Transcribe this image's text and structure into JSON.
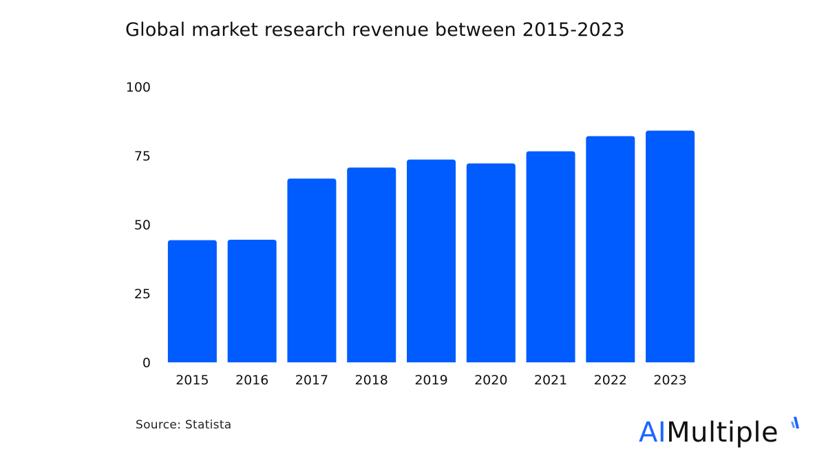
{
  "chart_data": {
    "type": "bar",
    "title": "Global market research revenue between 2015-2023",
    "xlabel": "",
    "ylabel": "",
    "categories": [
      "2015",
      "2016",
      "2017",
      "2018",
      "2019",
      "2020",
      "2021",
      "2022",
      "2023"
    ],
    "values": [
      44.35,
      44.5,
      66.7,
      70.7,
      73.6,
      72.2,
      76.6,
      82.1,
      84.1
    ],
    "ylim": [
      0,
      100
    ],
    "yticks": [
      0,
      25,
      50,
      75,
      100
    ],
    "ytick_labels": [
      "0",
      "25",
      "50",
      "75",
      "100"
    ],
    "grid": false,
    "legend": "none",
    "bar_color": "#005cff"
  },
  "source": "Source: Statista",
  "logo": {
    "ai": "AI",
    "rest": "Multiple",
    "accent_color": "#1a66ff"
  }
}
